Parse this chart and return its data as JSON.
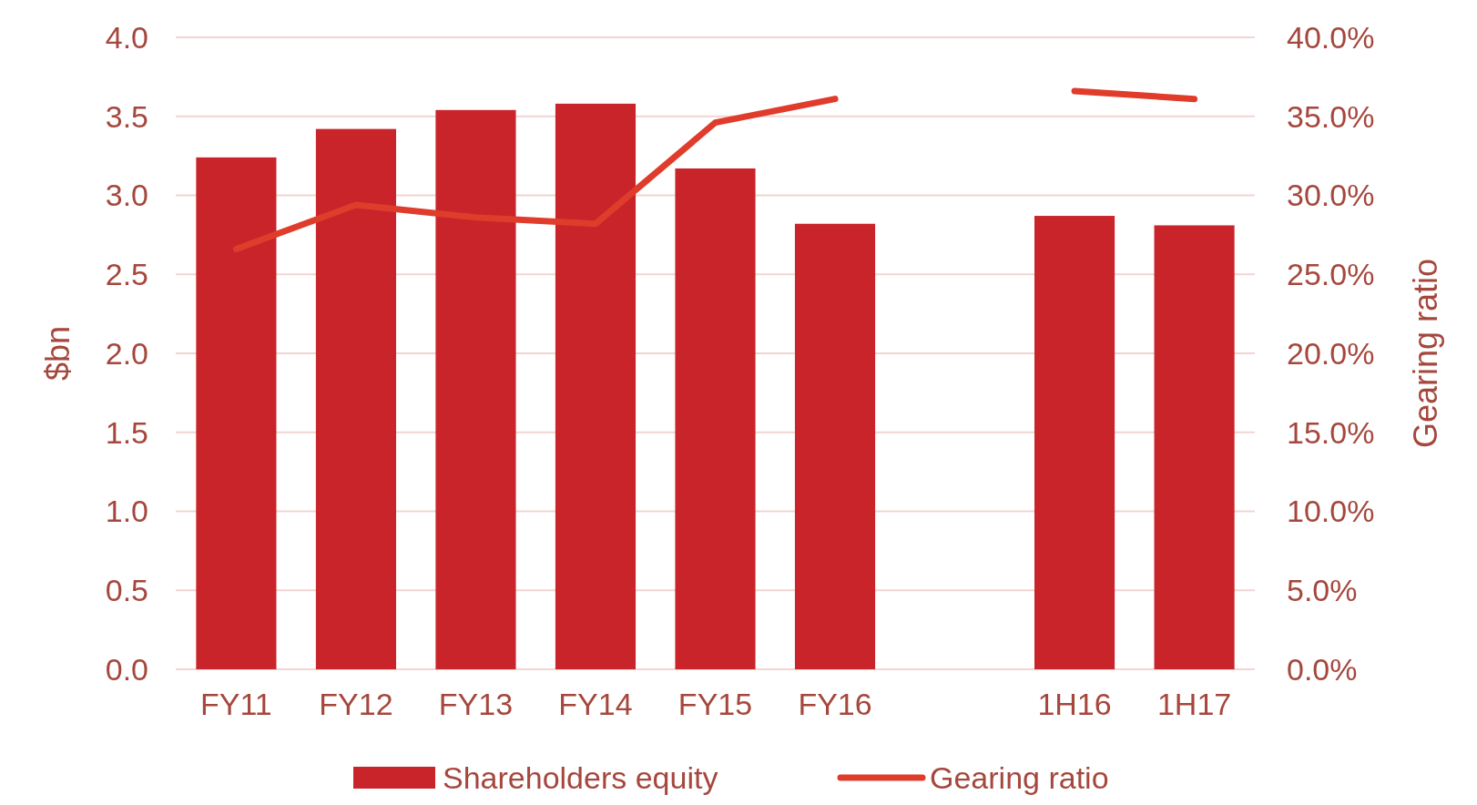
{
  "chart_data": {
    "type": "bar",
    "ylabel": "$bn",
    "y2label": "Gearing ratio",
    "categories": [
      "FY11",
      "FY12",
      "FY13",
      "FY14",
      "FY15",
      "FY16",
      null,
      "1H16",
      "1H17"
    ],
    "series": [
      {
        "name": "Shareholders equity",
        "color": "#c8242a",
        "values": [
          3.24,
          3.42,
          3.54,
          3.58,
          3.17,
          2.82,
          null,
          2.87,
          2.81
        ]
      },
      {
        "name": "Gearing ratio",
        "type": "line",
        "axis": "y2",
        "color": "#e03c2c",
        "values": [
          26.6,
          29.4,
          28.6,
          28.2,
          34.6,
          36.1,
          null,
          36.6,
          36.1
        ]
      }
    ],
    "ylim": [
      0,
      4
    ],
    "yticks": [
      {
        "value": 0,
        "label": "0.0"
      },
      {
        "value": 0.5,
        "label": "0.5"
      },
      {
        "value": 1,
        "label": "1.0"
      },
      {
        "value": 1.5,
        "label": "1.5"
      },
      {
        "value": 2,
        "label": "2.0"
      },
      {
        "value": 2.5,
        "label": "2.5"
      },
      {
        "value": 3,
        "label": "3.0"
      },
      {
        "value": 3.5,
        "label": "3.5"
      },
      {
        "value": 4,
        "label": "4.0"
      }
    ],
    "y2lim": [
      0,
      40
    ],
    "y2ticks": [
      {
        "value": 0,
        "label": "0.0%"
      },
      {
        "value": 5,
        "label": "5.0%"
      },
      {
        "value": 10,
        "label": "10.0%"
      },
      {
        "value": 15,
        "label": "15.0%"
      },
      {
        "value": 20,
        "label": "20.0%"
      },
      {
        "value": 25,
        "label": "25.0%"
      },
      {
        "value": 30,
        "label": "30.0%"
      },
      {
        "value": 35,
        "label": "35.0%"
      },
      {
        "value": 40,
        "label": "40.0%"
      }
    ],
    "grid": "y",
    "legend": "bottom",
    "marker": "none",
    "line_style": "solid"
  }
}
